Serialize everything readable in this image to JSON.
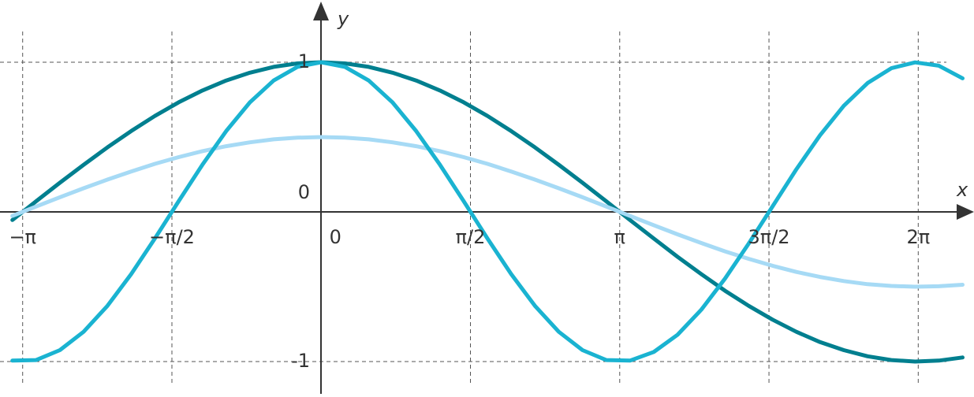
{
  "chart_data": {
    "type": "line",
    "x_label": "x",
    "y_label": "y",
    "x": [
      -3.25,
      -3,
      -2.75,
      -2.5,
      -2.25,
      -2,
      -1.75,
      -1.5,
      -1.25,
      -1,
      -0.75,
      -0.5,
      -0.25,
      0,
      0.25,
      0.5,
      0.75,
      1,
      1.25,
      1.5,
      1.75,
      2,
      2.25,
      2.5,
      2.75,
      3,
      3.25,
      3.5,
      3.75,
      4,
      4.25,
      4.5,
      4.75,
      5,
      5.25,
      5.5,
      5.75,
      6,
      6.25,
      6.5,
      6.75
    ],
    "series": [
      {
        "color": "#007f8f",
        "values": [
          -0.054,
          0.071,
          0.195,
          0.315,
          0.431,
          0.54,
          0.641,
          0.732,
          0.811,
          0.878,
          0.93,
          0.969,
          0.992,
          1,
          0.992,
          0.969,
          0.93,
          0.878,
          0.811,
          0.732,
          0.641,
          0.54,
          0.431,
          0.315,
          0.195,
          0.071,
          -0.054,
          -0.178,
          -0.3,
          -0.416,
          -0.527,
          -0.628,
          -0.72,
          -0.801,
          -0.87,
          -0.924,
          -0.965,
          -0.99,
          -1,
          -0.994,
          -0.973
        ]
      },
      {
        "color": "#a6daf5",
        "values": [
          -0.027,
          0.036,
          0.098,
          0.158,
          0.216,
          0.27,
          0.321,
          0.366,
          0.406,
          0.439,
          0.465,
          0.485,
          0.496,
          0.5,
          0.496,
          0.485,
          0.465,
          0.439,
          0.406,
          0.366,
          0.321,
          0.27,
          0.216,
          0.158,
          0.098,
          0.036,
          -0.027,
          -0.089,
          -0.15,
          -0.208,
          -0.264,
          -0.314,
          -0.36,
          -0.401,
          -0.435,
          -0.462,
          -0.483,
          -0.495,
          -0.5,
          -0.497,
          -0.487
        ]
      },
      {
        "color": "#1ab3d1",
        "values": [
          -0.994,
          -0.99,
          -0.924,
          -0.801,
          -0.628,
          -0.416,
          -0.178,
          0.071,
          0.315,
          0.54,
          0.732,
          0.878,
          0.969,
          1,
          0.969,
          0.878,
          0.732,
          0.54,
          0.315,
          0.071,
          -0.178,
          -0.416,
          -0.628,
          -0.801,
          -0.924,
          -0.99,
          -0.994,
          -0.936,
          -0.821,
          -0.654,
          -0.446,
          -0.211,
          0.037,
          0.284,
          0.512,
          0.709,
          0.861,
          0.96,
          0.999,
          0.977,
          0.893
        ]
      }
    ],
    "xlim": [
      -3.38,
      6.87
    ],
    "ylim": [
      -1.216,
      1.416
    ],
    "xticks": [
      {
        "value": -3.1416,
        "label": "−π"
      },
      {
        "value": -1.5708,
        "label": "−π/2"
      },
      0,
      {
        "value": 1.5708,
        "label": "π/2"
      },
      {
        "value": 3.1416,
        "label": "π"
      },
      {
        "value": 4.7124,
        "label": "3π/2"
      },
      {
        "value": 6.2832,
        "label": "2π"
      }
    ],
    "yticks": [
      -1,
      0,
      1
    ],
    "grid": true
  }
}
